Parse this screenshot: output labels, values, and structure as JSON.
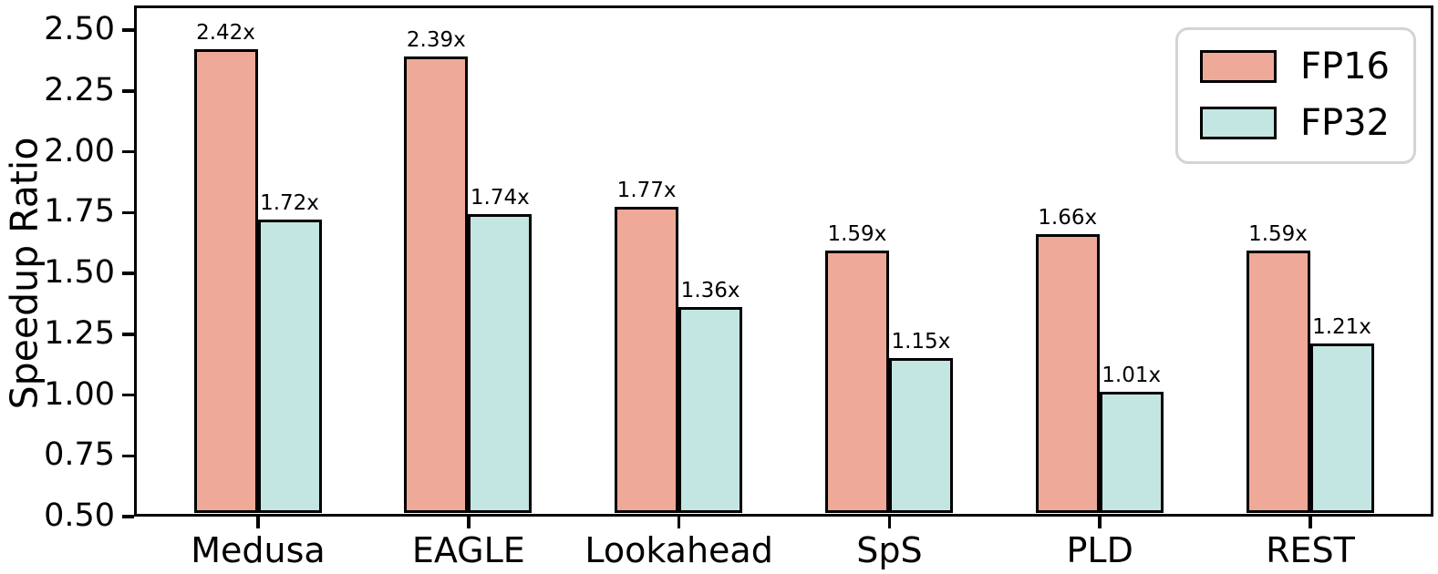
{
  "figure": {
    "background": "#ffffff",
    "axis_color": "#000000"
  },
  "chart_data": {
    "type": "bar",
    "title": "",
    "xlabel": "",
    "ylabel": "Speedup Ratio",
    "categories": [
      "Medusa",
      "EAGLE",
      "Lookahead",
      "SpS",
      "PLD",
      "REST"
    ],
    "series": [
      {
        "name": "FP16",
        "color": "#efa998",
        "values": [
          2.42,
          2.39,
          1.77,
          1.59,
          1.66,
          1.59
        ],
        "labels": [
          "2.42x",
          "2.39x",
          "1.77x",
          "1.59x",
          "1.66x",
          "1.59x"
        ]
      },
      {
        "name": "FP32",
        "color": "#c3e6e3",
        "values": [
          1.72,
          1.74,
          1.36,
          1.15,
          1.01,
          1.21
        ],
        "labels": [
          "1.72x",
          "1.74x",
          "1.36x",
          "1.15x",
          "1.01x",
          "1.21x"
        ]
      }
    ],
    "bar_edge_color": "#000000",
    "yticks": [
      "0.50",
      "0.75",
      "1.00",
      "1.25",
      "1.50",
      "1.75",
      "2.00",
      "2.25",
      "2.50"
    ],
    "ylim": [
      0.5,
      2.5
    ],
    "grid": false,
    "legend_position": "upper right"
  }
}
